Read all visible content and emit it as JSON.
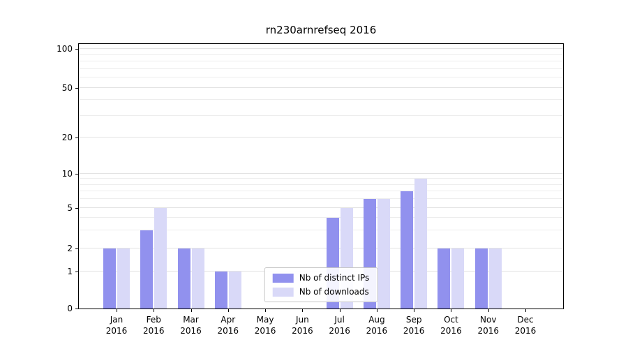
{
  "chart_data": {
    "type": "bar",
    "title": "rn230arnrefseq 2016",
    "categories": [
      {
        "label": "Jan",
        "sub": "2016"
      },
      {
        "label": "Feb",
        "sub": "2016"
      },
      {
        "label": "Mar",
        "sub": "2016"
      },
      {
        "label": "Apr",
        "sub": "2016"
      },
      {
        "label": "May",
        "sub": "2016"
      },
      {
        "label": "Jun",
        "sub": "2016"
      },
      {
        "label": "Jul",
        "sub": "2016"
      },
      {
        "label": "Aug",
        "sub": "2016"
      },
      {
        "label": "Sep",
        "sub": "2016"
      },
      {
        "label": "Oct",
        "sub": "2016"
      },
      {
        "label": "Nov",
        "sub": "2016"
      },
      {
        "label": "Dec",
        "sub": "2016"
      }
    ],
    "series": [
      {
        "name": "Nb of distinct IPs",
        "color": "#9191ee",
        "values": [
          2,
          3,
          2,
          1,
          0,
          0,
          4,
          6,
          7,
          2,
          2,
          0
        ]
      },
      {
        "name": "Nb of downloads",
        "color": "#d9d9f8",
        "values": [
          2,
          5,
          2,
          1,
          0,
          0,
          5,
          6,
          9,
          2,
          2,
          0
        ]
      }
    ],
    "yticks": [
      0,
      1,
      2,
      5,
      10,
      20,
      50,
      100
    ],
    "scale": "log-like",
    "ylim": [
      0,
      110
    ],
    "xlabel": "",
    "ylabel": "",
    "grid": true,
    "legend_position": "lower center"
  }
}
